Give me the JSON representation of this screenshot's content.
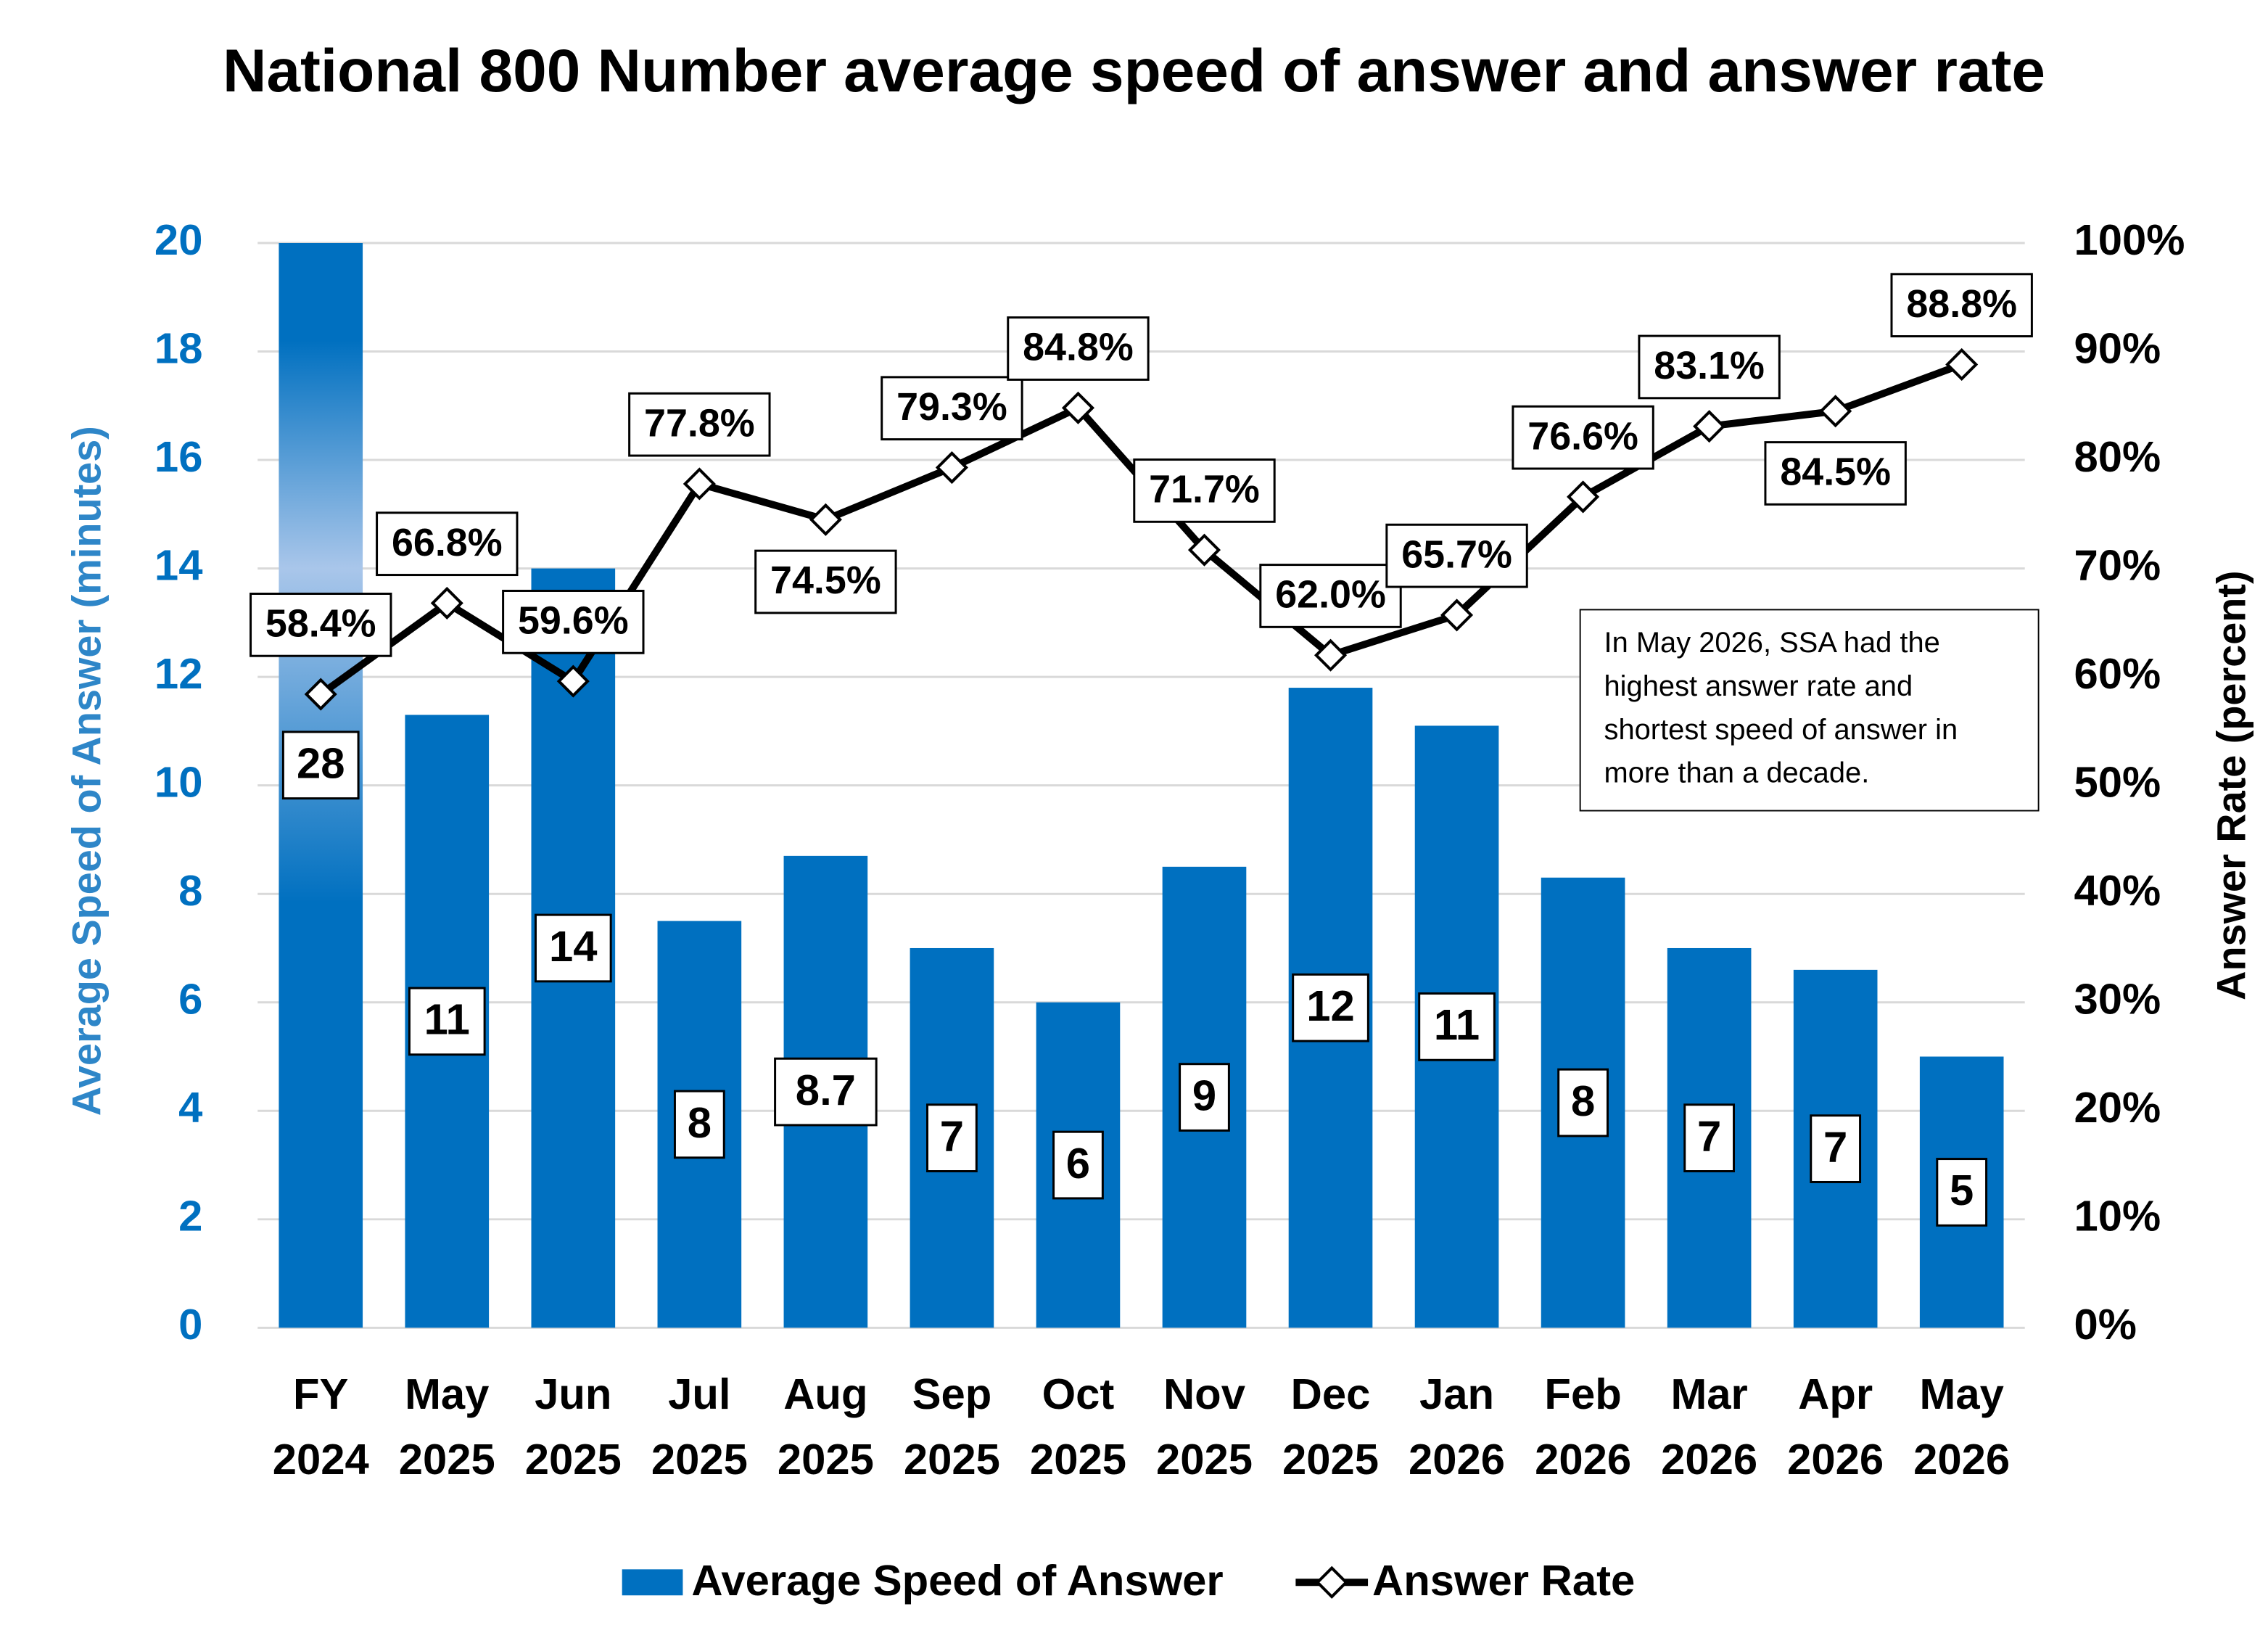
{
  "chart_data": {
    "type": "bar_line",
    "title": "National 800 Number average speed of answer and answer rate",
    "y_label": "Average Speed of Answer (minutes)",
    "y2_label": "Answer Rate (percent)",
    "annotation": "In May 2026, SSA had the highest answer rate and shortest speed of answer in more than a decade.",
    "categories": [
      "FY 2024",
      "May 2025",
      "Jun 2025",
      "Jul 2025",
      "Aug 2025",
      "Sep 2025",
      "Oct 2025",
      "Nov 2025",
      "Dec 2025",
      "Jan 2026",
      "Feb 2026",
      "Mar 2026",
      "Apr 2026",
      "May 2026"
    ],
    "ylim": [
      0,
      20
    ],
    "yticks": [
      0,
      2,
      4,
      6,
      8,
      10,
      12,
      14,
      16,
      18,
      20
    ],
    "y2lim": [
      0,
      100
    ],
    "y2ticks": [
      {
        "value": 0,
        "label": "0%"
      },
      {
        "value": 10,
        "label": "10%"
      },
      {
        "value": 20,
        "label": "20%"
      },
      {
        "value": 30,
        "label": "30%"
      },
      {
        "value": 40,
        "label": "40%"
      },
      {
        "value": 50,
        "label": "50%"
      },
      {
        "value": 60,
        "label": "60%"
      },
      {
        "value": 70,
        "label": "70%"
      },
      {
        "value": 80,
        "label": "80%"
      },
      {
        "value": 90,
        "label": "90%"
      },
      {
        "value": 100,
        "label": "100%"
      }
    ],
    "grid": true,
    "legend": "bottom",
    "series": [
      {
        "name": "Average Speed of Answer",
        "type": "bar",
        "color": "#0070c0",
        "values": [
          28,
          11.3,
          14,
          7.5,
          8.7,
          7.0,
          6.0,
          8.5,
          11.8,
          11.1,
          8.3,
          7.0,
          6.6,
          5.0
        ],
        "value_labels": [
          "28",
          "11",
          "14",
          "8",
          "8.7",
          "7",
          "6",
          "9",
          "12",
          "11",
          "8",
          "7",
          "7",
          "5"
        ]
      },
      {
        "name": "Answer Rate",
        "type": "line",
        "axis": "y2",
        "color": "#000000",
        "values": [
          58.4,
          66.8,
          59.6,
          77.8,
          74.5,
          79.3,
          84.8,
          71.7,
          62.0,
          65.7,
          76.6,
          83.1,
          84.5,
          88.8
        ],
        "value_labels": [
          "58.4%",
          "66.8%",
          "59.6%",
          "77.8%",
          "74.5%",
          "79.3%",
          "84.8%",
          "71.7%",
          "62.0%",
          "65.7%",
          "76.6%",
          "83.1%",
          "84.5%",
          "88.8%"
        ]
      }
    ]
  }
}
